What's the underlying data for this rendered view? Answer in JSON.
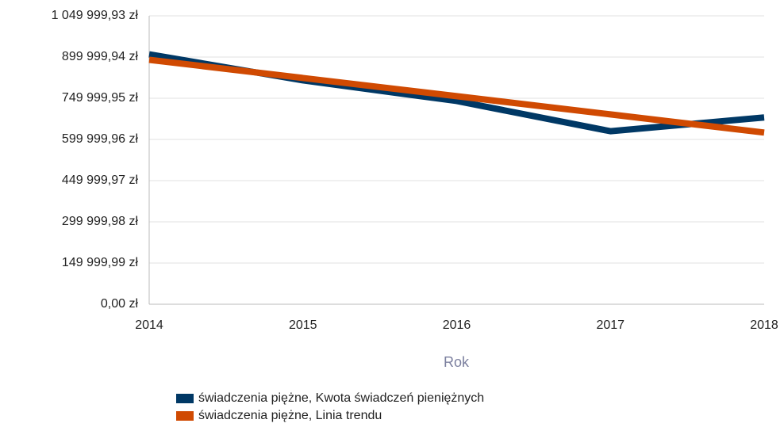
{
  "chart_data": {
    "type": "line",
    "x": [
      2014,
      2015,
      2016,
      2017,
      2018
    ],
    "xlim": [
      2014,
      2018
    ],
    "xticks": [
      2014,
      2015,
      2016,
      2017,
      2018
    ],
    "xlabel": "Rok",
    "ylim": [
      0,
      1049999.93
    ],
    "yticks": [
      {
        "value": 0,
        "label": "0,00 zł"
      },
      {
        "value": 149999.99,
        "label": "149 999,99 zł"
      },
      {
        "value": 299999.98,
        "label": "299 999,98 zł"
      },
      {
        "value": 449999.97,
        "label": "449 999,97 zł"
      },
      {
        "value": 599999.96,
        "label": "599 999,96 zł"
      },
      {
        "value": 749999.95,
        "label": "749 999,95 zł"
      },
      {
        "value": 899999.94,
        "label": "899 999,94 zł"
      },
      {
        "value": 1049999.93,
        "label": "1 049 999,93 zł"
      }
    ],
    "grid": true,
    "legend": "bottom",
    "series": [
      {
        "name": "świadczenia piężne, Kwota świadczeń pieniężnych",
        "color": "#003865",
        "values": [
          910000,
          815000,
          740000,
          630000,
          680000
        ]
      },
      {
        "name": "świadczenia piężne, Linia trendu",
        "color": "#d04a02",
        "values": [
          890000,
          823750,
          757500,
          691250,
          625000
        ]
      }
    ]
  }
}
